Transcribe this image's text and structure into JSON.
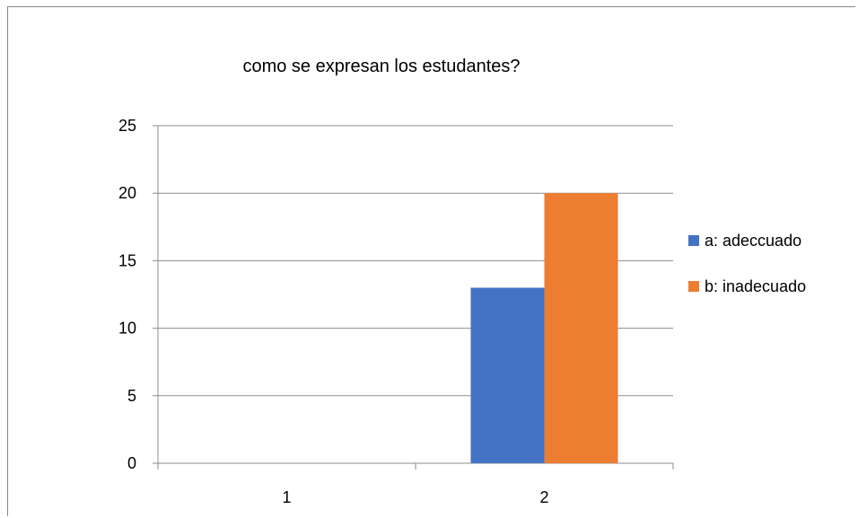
{
  "chart_data": {
    "type": "bar",
    "title": "como se expresan los estudantes?",
    "categories": [
      "1",
      "2"
    ],
    "series": [
      {
        "name": "a: adeccuado",
        "values": [
          0,
          13
        ],
        "color": "#4472c4"
      },
      {
        "name": "b: inadecuado",
        "values": [
          0,
          20
        ],
        "color": "#ed7d31"
      }
    ],
    "ylim": [
      0,
      25
    ],
    "yticks": [
      0,
      5,
      10,
      15,
      20,
      25
    ],
    "grid": true,
    "legend": "right"
  }
}
